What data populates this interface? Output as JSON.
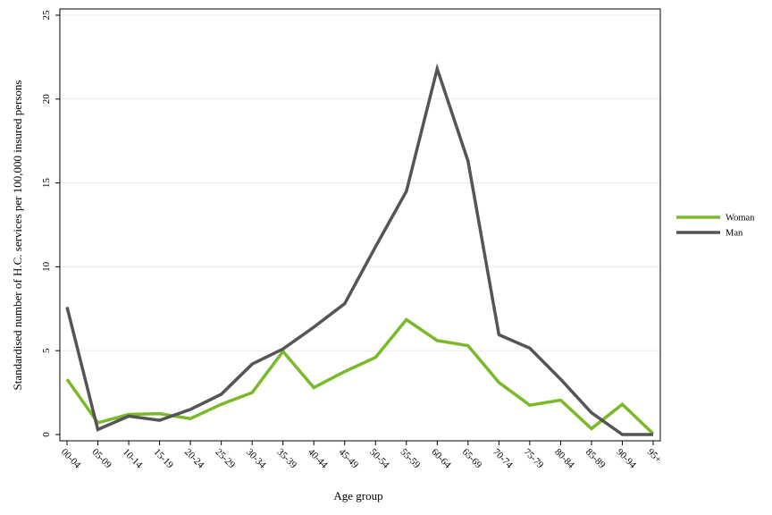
{
  "chart_data": {
    "type": "line",
    "xlabel": "Age group",
    "ylabel": "Standardised number of H.C. services per 100,000 insured persons",
    "categories": [
      "00-04",
      "05-09",
      "10-14",
      "15-19",
      "20-24",
      "25-29",
      "30-34",
      "35-39",
      "40-44",
      "45-49",
      "50-54",
      "55-59",
      "60-64",
      "65-69",
      "70-74",
      "75-79",
      "80-84",
      "85-89",
      "90-94",
      "95+"
    ],
    "ylim": [
      0,
      25
    ],
    "yticks": [
      0,
      5,
      10,
      15,
      20,
      25
    ],
    "ytick_labels": [
      "0",
      "5",
      "10",
      "15",
      "20",
      "25"
    ],
    "grid": "horizontal",
    "legend_position": "right",
    "series": [
      {
        "name": "Woman",
        "color": "#7ab929",
        "values": [
          3.3,
          0.7,
          1.2,
          1.25,
          0.95,
          1.8,
          2.5,
          4.95,
          2.8,
          3.75,
          4.6,
          6.85,
          5.6,
          5.3,
          3.1,
          1.75,
          2.05,
          0.35,
          1.8,
          0.05
        ]
      },
      {
        "name": "Man",
        "color": "#555555",
        "values": [
          7.6,
          0.3,
          1.1,
          0.85,
          1.5,
          2.4,
          4.2,
          5.1,
          6.4,
          7.8,
          11.2,
          14.5,
          21.8,
          16.3,
          5.95,
          5.15,
          3.3,
          1.3,
          0.0,
          0.0
        ]
      }
    ]
  }
}
